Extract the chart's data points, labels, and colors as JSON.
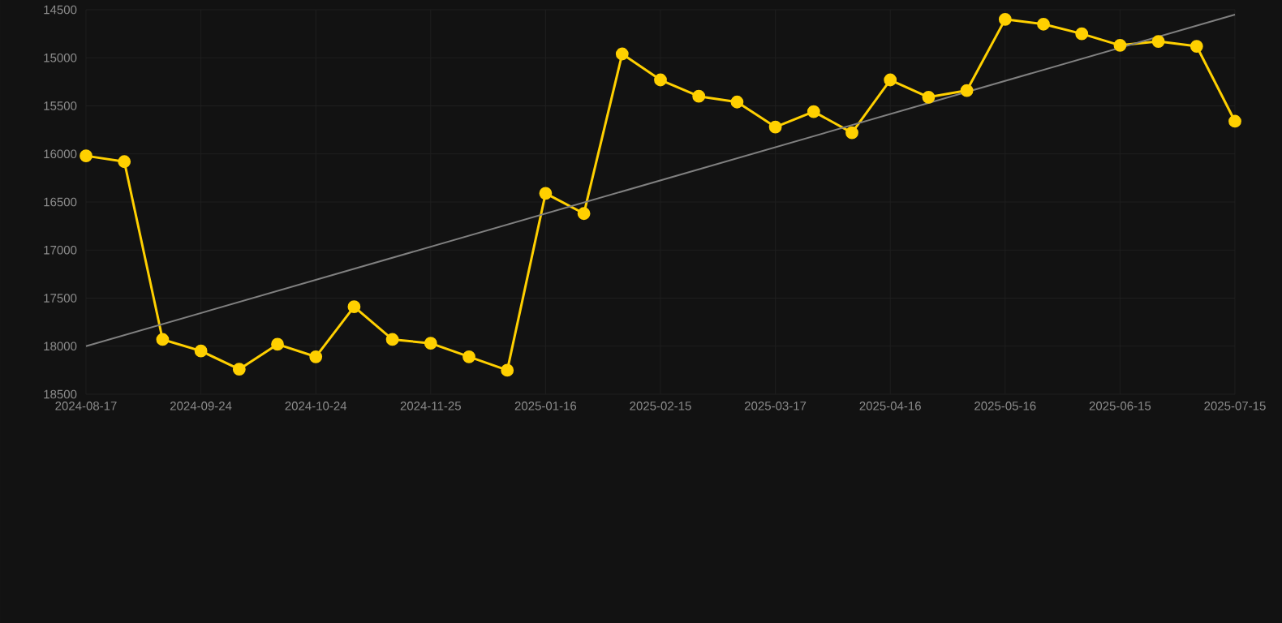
{
  "chart_data": {
    "type": "line",
    "categories": [
      "2024-08-17",
      null,
      null,
      "2024-09-24",
      null,
      null,
      "2024-10-24",
      null,
      null,
      "2024-11-25",
      null,
      null,
      "2025-01-16",
      null,
      null,
      "2025-02-15",
      null,
      null,
      "2025-03-17",
      null,
      null,
      "2025-04-16",
      null,
      null,
      "2025-05-16",
      null,
      null,
      "2025-06-15",
      null,
      null,
      "2025-07-15"
    ],
    "series": [
      {
        "color": "#ffd000",
        "values": [
          16020,
          16080,
          17930,
          18050,
          18240,
          17980,
          18110,
          17590,
          17930,
          17970,
          18110,
          18250,
          16410,
          16620,
          14960,
          15230,
          15400,
          15460,
          15720,
          15560,
          15780,
          15230,
          15410,
          15340,
          14600,
          14650,
          14750,
          14870,
          14830,
          14880,
          15660
        ]
      },
      {
        "type": "line",
        "color": "#808080",
        "marker": "none",
        "values": [
          18000,
          null,
          null,
          null,
          null,
          null,
          null,
          null,
          null,
          null,
          null,
          null,
          null,
          null,
          null,
          null,
          null,
          null,
          null,
          null,
          null,
          null,
          null,
          null,
          null,
          null,
          null,
          null,
          null,
          null,
          14550
        ]
      }
    ],
    "ylim": [
      18500,
      14500
    ],
    "yticks": [
      14500,
      15000,
      15500,
      16000,
      16500,
      17000,
      17500,
      18000,
      18500
    ],
    "grid": true,
    "marker": "circle",
    "line_style": "solid"
  }
}
